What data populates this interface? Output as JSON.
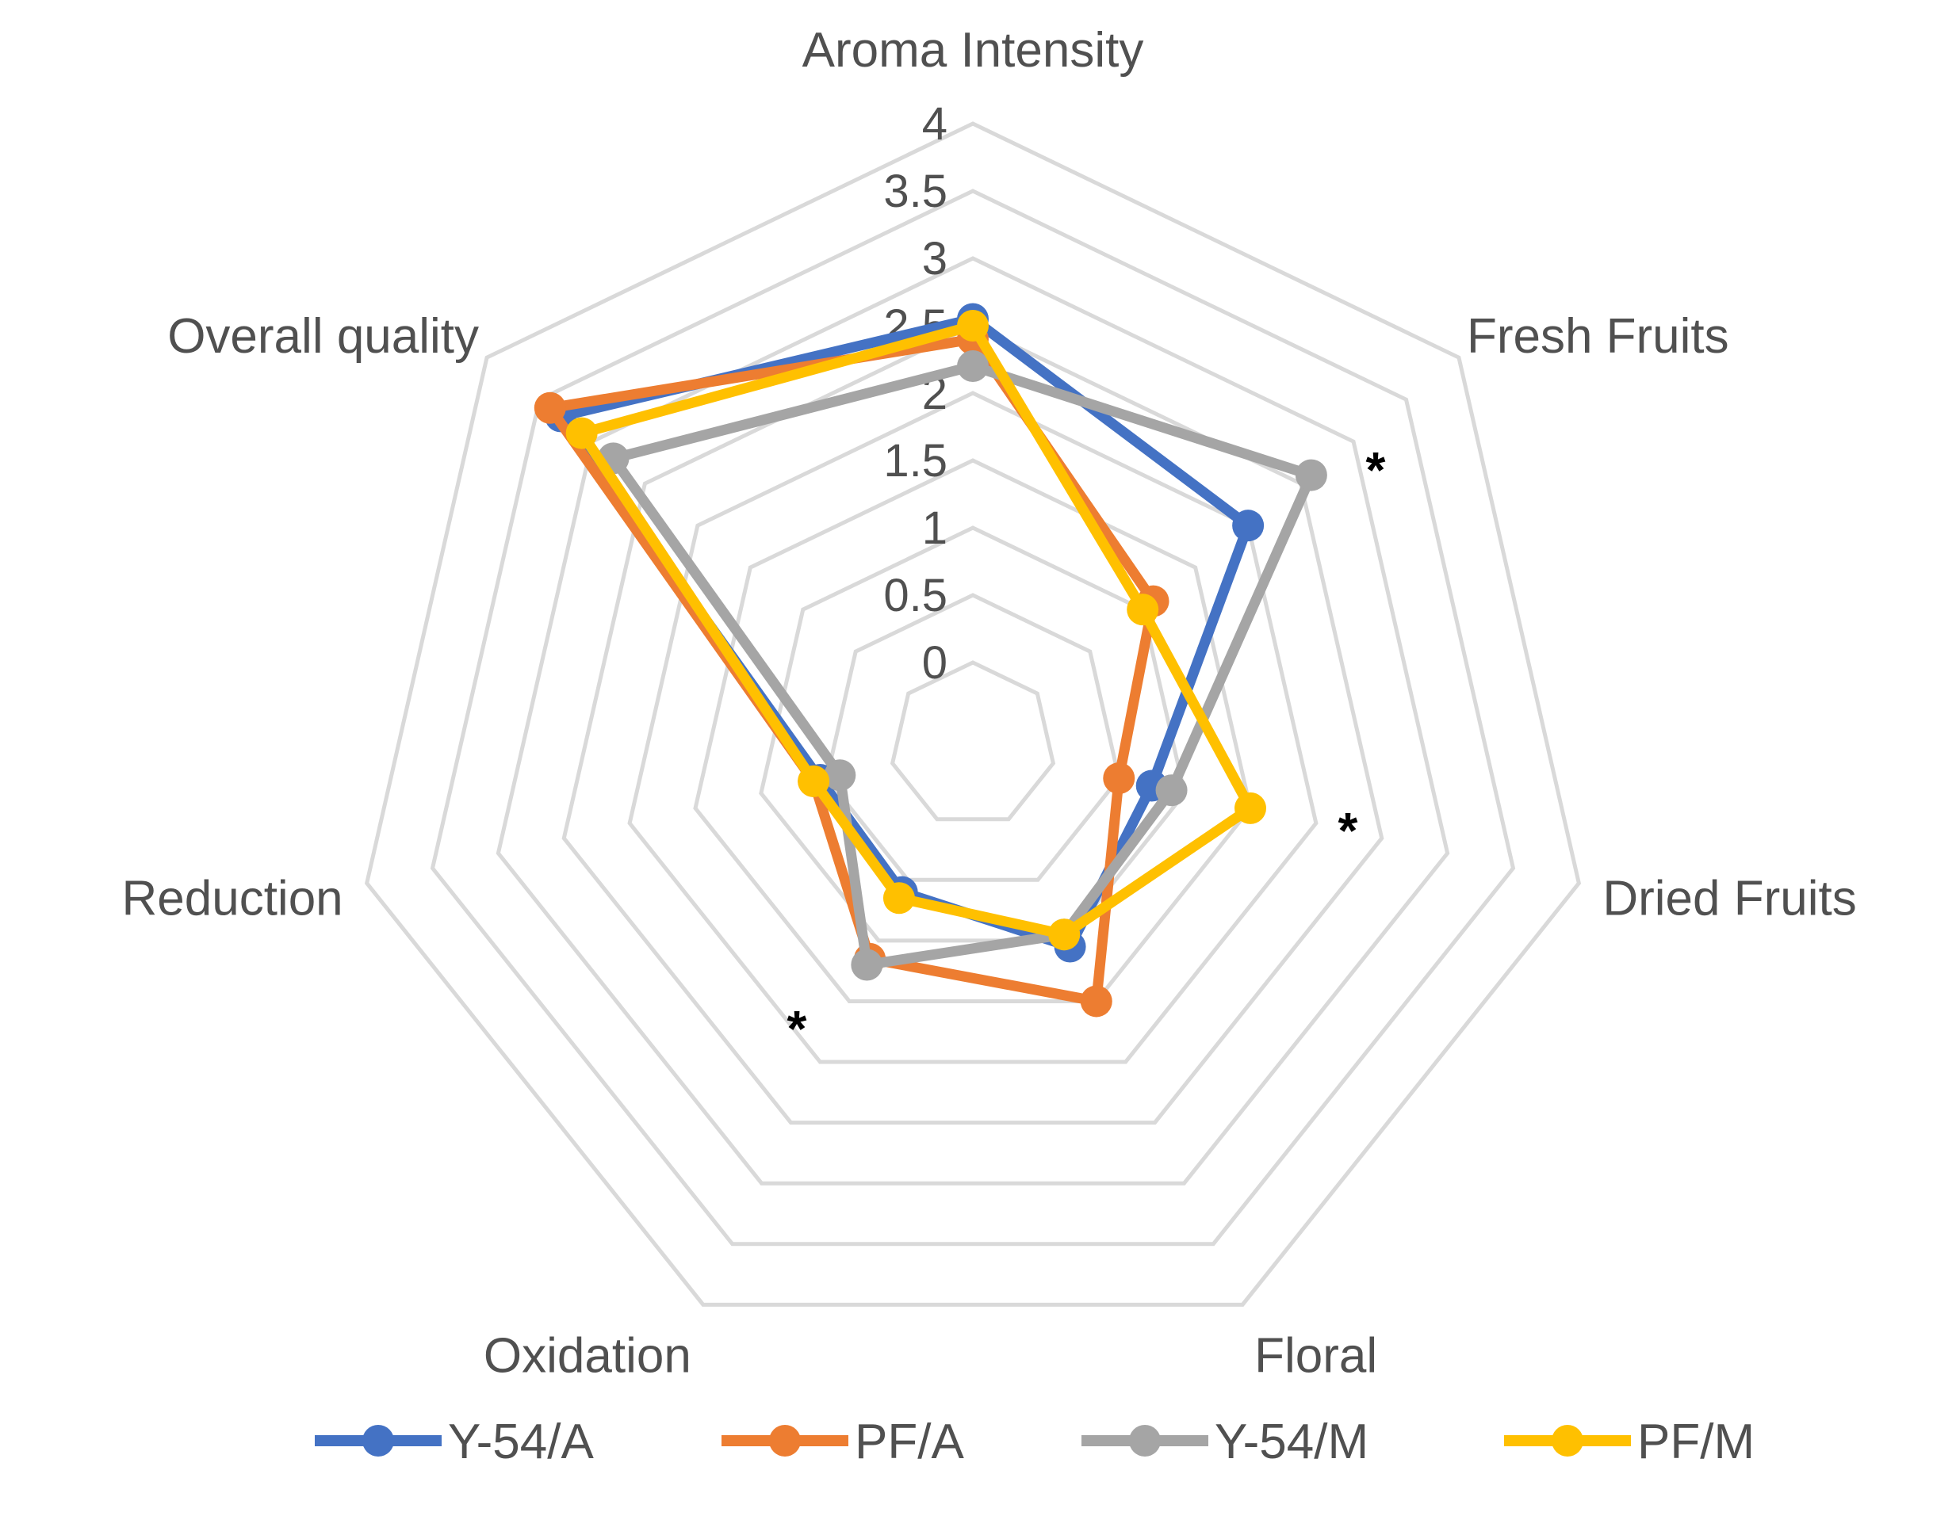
{
  "chart_data": {
    "type": "radar",
    "title": "",
    "axes": [
      "Aroma Intensity",
      "Fresh Fruits",
      "Dried Fruits",
      "Floral",
      "Oxidation",
      "Reduction",
      "Overall quality"
    ],
    "rlim": [
      0,
      4
    ],
    "ticks": [
      "0",
      "0.5",
      "1",
      "1.5",
      "2",
      "2.5",
      "3",
      "3.5",
      "4"
    ],
    "tick_values": [
      0,
      0.5,
      1,
      1.5,
      2,
      2.5,
      3,
      3.5,
      4
    ],
    "grid": true,
    "legend_position": "bottom",
    "significance_marker": "*",
    "significant_axes": [
      "Fresh Fruits",
      "Dried Fruits",
      "Oxidation"
    ],
    "series": [
      {
        "name": "Y-54/A",
        "color": "#4472C4",
        "values": [
          2.55,
          2.0,
          0.75,
          1.05,
          0.6,
          0.55,
          3.3
        ]
      },
      {
        "name": "PF/A",
        "color": "#ED7D31",
        "values": [
          2.4,
          1.1,
          0.5,
          1.5,
          1.15,
          0.6,
          3.4
        ]
      },
      {
        "name": "Y-54/M",
        "color": "#A5A5A5",
        "values": [
          2.2,
          2.6,
          0.9,
          0.95,
          1.2,
          0.4,
          2.8
        ]
      },
      {
        "name": "PF/M",
        "color": "#FFC000",
        "values": [
          2.5,
          1.0,
          1.5,
          0.95,
          0.65,
          0.6,
          3.1
        ]
      }
    ]
  }
}
